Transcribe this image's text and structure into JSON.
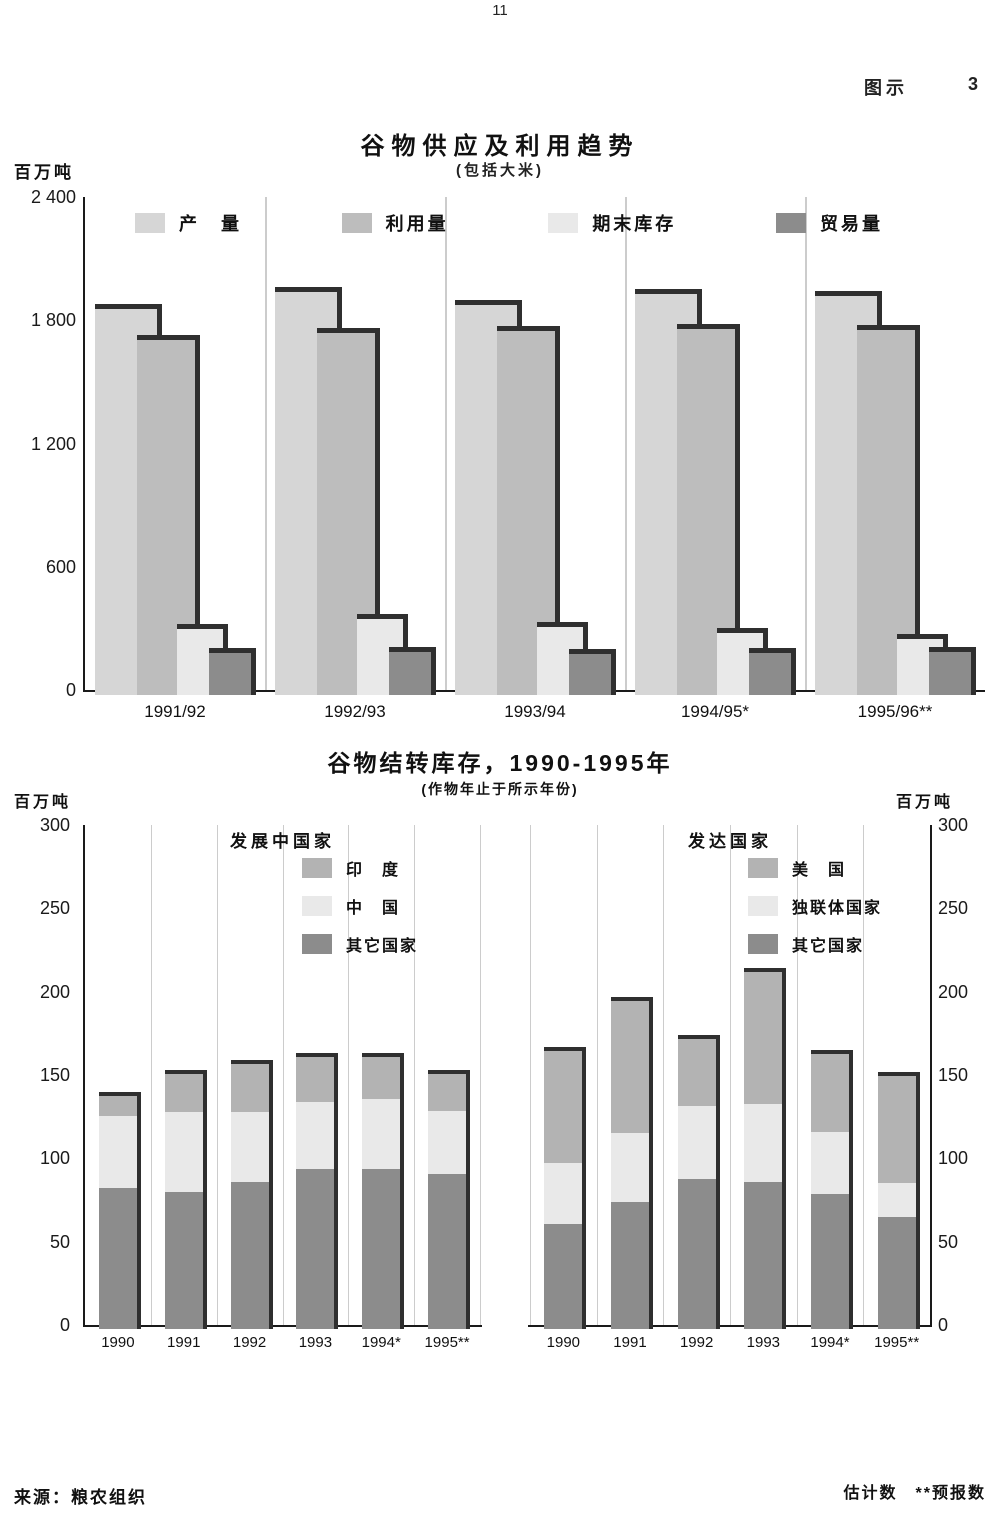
{
  "page": {
    "number": "11",
    "figure_label": "图示",
    "figure_number": "3",
    "source": "来源：粮农组织",
    "footnote": "估计数　**预报数"
  },
  "palette": {
    "outline": "#2f2f2f",
    "axis": "#1a1a1a",
    "grid": "#cccccc"
  },
  "chart_data": [
    {
      "type": "bar",
      "title": "谷物供应及利用趋势",
      "subtitle": "(包括大米)",
      "unit_label": "百万吨",
      "ylim": [
        0,
        2400
      ],
      "yticks": [
        {
          "v": 2400,
          "label": "2 400"
        },
        {
          "v": 1800,
          "label": "1 800"
        },
        {
          "v": 1200,
          "label": "1 200"
        },
        {
          "v": 600,
          "label": "600"
        },
        {
          "v": 0,
          "label": "0"
        }
      ],
      "categories": [
        "1991/92",
        "1992/93",
        "1993/94",
        "1994/95*",
        "1995/96**"
      ],
      "series": [
        {
          "name": "产　量",
          "color": "#d6d6d6",
          "values": [
            1880,
            1960,
            1900,
            1950,
            1940
          ]
        },
        {
          "name": "利用量",
          "color": "#bdbdbd",
          "values": [
            1730,
            1760,
            1770,
            1780,
            1775
          ]
        },
        {
          "name": "期末库存",
          "color": "#e9e9e9",
          "values": [
            320,
            370,
            330,
            300,
            275
          ]
        },
        {
          "name": "贸易量",
          "color": "#8c8c8c",
          "values": [
            205,
            210,
            200,
            205,
            210
          ]
        }
      ]
    },
    {
      "type": "stacked-bar",
      "title": "谷物结转库存，1990-1995年",
      "subtitle": "(作物年止于所示年份)",
      "unit_label_left": "百万吨",
      "unit_label_right": "百万吨",
      "ylim": [
        0,
        300
      ],
      "yticks": [
        {
          "v": 300,
          "label": "300"
        },
        {
          "v": 250,
          "label": "250"
        },
        {
          "v": 200,
          "label": "200"
        },
        {
          "v": 150,
          "label": "150"
        },
        {
          "v": 100,
          "label": "100"
        },
        {
          "v": 50,
          "label": "50"
        },
        {
          "v": 0,
          "label": "0"
        }
      ],
      "panels": [
        {
          "header": "发展中国家",
          "categories": [
            "1990",
            "1991",
            "1992",
            "1993",
            "1994*",
            "1995**"
          ],
          "series": [
            {
              "name": "其它国家",
              "color": "#8c8c8c",
              "values": [
                85,
                82,
                88,
                96,
                96,
                93
              ]
            },
            {
              "name": "中　国",
              "color": "#e9e9e9",
              "values": [
                43,
                48,
                42,
                40,
                42,
                38
              ]
            },
            {
              "name": "印　度",
              "color": "#b3b3b3",
              "values": [
                12,
                23,
                29,
                27,
                25,
                22
              ]
            }
          ]
        },
        {
          "header": "发达国家",
          "categories": [
            "1990",
            "1991",
            "1992",
            "1993",
            "1994*",
            "1995**"
          ],
          "series": [
            {
              "name": "其它国家",
              "color": "#8c8c8c",
              "values": [
                63,
                76,
                90,
                88,
                81,
                67
              ]
            },
            {
              "name": "独联体国家",
              "color": "#e9e9e9",
              "values": [
                37,
                42,
                44,
                47,
                37,
                21
              ]
            },
            {
              "name": "美　国",
              "color": "#b3b3b3",
              "values": [
                67,
                79,
                40,
                79,
                47,
                64
              ]
            }
          ]
        }
      ]
    }
  ]
}
